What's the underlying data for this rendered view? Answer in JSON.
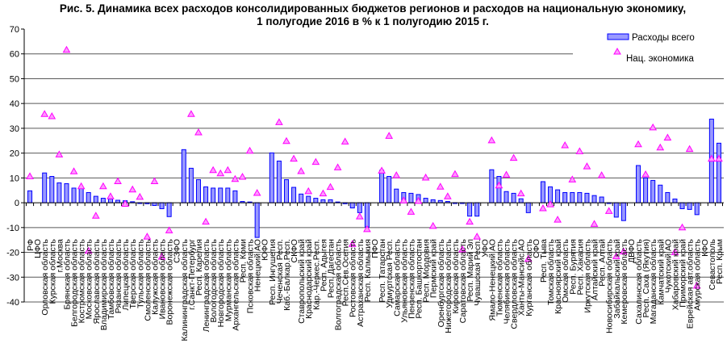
{
  "chart_data": {
    "type": "bar",
    "title": "Рис. 5. Динамика всех расходов консолидированных бюджетов регионов и расходов на национальную экономику,",
    "subtitle": "1 полугодие 2016 в % к 1 полугодию 2015 г.",
    "xlabel": "",
    "ylabel": "",
    "ylim": [
      -40,
      70
    ],
    "yticks": [
      70,
      60,
      50,
      40,
      30,
      20,
      10,
      0,
      -10,
      -20,
      -30,
      -40
    ],
    "grid": true,
    "legend_position": "top-right",
    "categories": [
      "РФ",
      "ЦФО",
      "Орловская область",
      "Курская область",
      "г.Москва",
      "Брянская область",
      "Белгородская область",
      "Костромская область",
      "Московская область",
      "Ярославская область",
      "Владимирская область",
      "Тамбовская область",
      "Рязанская область",
      "Липецкая область",
      "Тверская область",
      "Тульская область",
      "Смоленская область",
      "Калужская область",
      "Ивановская область",
      "Воронежская область",
      "СЗФО",
      "Калининградская область",
      "г.Санкт-Петербург",
      "Респ. Карелия",
      "Ленинградская область",
      "Вологодская область",
      "Новгородская область",
      "Мурманская область",
      "Архангельская область",
      "Респ. Коми",
      "Псковская область",
      "Ненецкий АО",
      "ЮФО",
      "Респ. Ингушетия",
      "Чеченская Респ.",
      "Каб.-Балкар.Респ.",
      "СКФО",
      "Ставропольский край",
      "Краснодарский край",
      "Кар.-Черкес.Респ.",
      "Респ. Адыгея",
      "Респ. Дагестан",
      "Волгоградская область",
      "Респ.Сев.Осетия",
      "Ростовская область",
      "Астраханская область",
      "Респ. Калмыкия",
      "ПФО",
      "Респ. Татарстан",
      "Удмуртская Респ.",
      "Самарская область",
      "Ульяновская область",
      "Пензенская область",
      "Респ. Башкортостан",
      "Респ. Мордовия",
      "Пермский край",
      "Оренбургская область",
      "Нижегородская область",
      "Кировская область",
      "Саратовская область",
      "Респ. Марий Эл",
      "Чувашская Респ.",
      "УФО",
      "Ямало-Ненецкий АО",
      "Тюменская область",
      "Челябинская область",
      "Свердловская область",
      "Ханты-Мансийс.АО",
      "Курганская область",
      "СФО",
      "Респ. Тыва",
      "Томская область",
      "Красноярский край",
      "Омская область",
      "Респ. Бурятия",
      "Респ. Хакасия",
      "Иркутская область",
      "Алтайский край",
      "Респ. Алтай",
      "Новосибирская область",
      "Забайкальский край",
      "Кемеровская область",
      "ДВФО",
      "Сахалинская область",
      "Респ. Саха (Якутия)",
      "Магаданская область",
      "Камчатский край",
      "Чукотский АО",
      "Хабаровский край",
      "Приморский край",
      "Еврейская авт.область",
      "Амурская область",
      "КФО",
      "Севастополь",
      "Респ. Крым"
    ],
    "series": [
      {
        "name": "Расходы всего",
        "kind": "bar",
        "fill": "#9999ff",
        "stroke": "#0000ff",
        "values": [
          4.8,
          null,
          12,
          10.6,
          8,
          7.7,
          5.9,
          5.9,
          4.1,
          2.6,
          1.8,
          1.5,
          1.0,
          0.8,
          0.4,
          -0.3,
          -0.4,
          -1.1,
          -2.4,
          -5.6,
          null,
          21.4,
          13.9,
          9.3,
          6.4,
          5.9,
          5.9,
          5.9,
          4.8,
          0.5,
          0.3,
          -14,
          null,
          20.1,
          16.8,
          9.3,
          6.2,
          3.5,
          2.6,
          1.8,
          1.2,
          1.2,
          0.3,
          -0.4,
          -2.1,
          -4.0,
          -9.8,
          null,
          13.1,
          10.6,
          5.5,
          4.1,
          3.8,
          3.3,
          1.8,
          1.2,
          0.9,
          0.5,
          -0.3,
          -0.3,
          -5.4,
          -5.4,
          null,
          13.3,
          10.6,
          4.5,
          3.8,
          1.6,
          -4.0,
          null,
          8.5,
          6.4,
          5.2,
          4.1,
          4.1,
          4.1,
          3.8,
          2.9,
          2.3,
          -0.3,
          -5.8,
          -7.2,
          null,
          15,
          10,
          9,
          7.1,
          4.1,
          1.5,
          -2.4,
          -2.7,
          -4.8,
          null,
          33.7,
          24
        ]
      },
      {
        "name": "Нац. экономика",
        "kind": "marker",
        "fill": "#ff99ff",
        "stroke": "#ff00ff",
        "values": [
          10.8,
          null,
          35.9,
          35,
          19.6,
          61.8,
          12.8,
          6.8,
          -19.2,
          -5.1,
          6.8,
          2.7,
          8.8,
          -0.3,
          5.5,
          2.5,
          -13.5,
          8.8,
          -21.6,
          -11,
          null,
          null,
          35.9,
          28.5,
          -7.5,
          13.3,
          12,
          13.3,
          9.7,
          10.6,
          21.1,
          4.1,
          null,
          null,
          32.6,
          25,
          17.9,
          12.9,
          4.8,
          16.6,
          3.9,
          6.5,
          14.4,
          24.8,
          -16.5,
          -5.4,
          -10.5,
          null,
          13.1,
          27.1,
          11.2,
          1.1,
          -3.5,
          0.9,
          10.3,
          -9.2,
          6.6,
          2.7,
          11.7,
          -18.7,
          -7.5,
          -13.5,
          null,
          25.3,
          7.1,
          11.4,
          18.2,
          3.9,
          -22.5,
          null,
          -2.1,
          -0.5,
          -6.7,
          23.3,
          9.5,
          20.9,
          14.8,
          -8.4,
          11.2,
          -3.2,
          -21.4,
          -19.5,
          null,
          23.7,
          11.6,
          30.5,
          22.4,
          26.4,
          -19.8,
          -9.8,
          21.8,
          -33.3,
          null,
          17.9,
          17.9
        ]
      }
    ]
  }
}
